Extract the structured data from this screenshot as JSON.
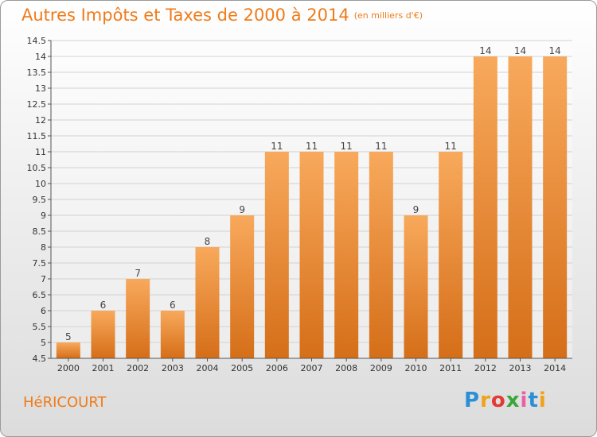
{
  "header": {
    "title": "Autres Impôts et Taxes de 2000 à 2014",
    "subtitle": "(en milliers d'€)"
  },
  "commune": "HéRICOURT",
  "logo": "Proxiti",
  "colors": {
    "accent": "#ef7b1a",
    "bar_top": "#f8a95c",
    "bar_bottom": "#d56e18"
  },
  "chart_data": {
    "type": "bar",
    "title": "Autres Impôts et Taxes de 2000 à 2014",
    "subtitle": "(en milliers d'€)",
    "categories": [
      "2000",
      "2001",
      "2002",
      "2003",
      "2004",
      "2005",
      "2006",
      "2007",
      "2008",
      "2009",
      "2010",
      "2011",
      "2012",
      "2013",
      "2014"
    ],
    "values": [
      5,
      6,
      7,
      6,
      8,
      9,
      11,
      11,
      11,
      11,
      9,
      11,
      14,
      14,
      14
    ],
    "data_labels": [
      "5",
      "6",
      "7",
      "6",
      "8",
      "9",
      "11",
      "11",
      "11",
      "11",
      "9",
      "11",
      "14",
      "14",
      "14"
    ],
    "ylim": [
      4.5,
      14.5
    ],
    "yticks": [
      "4.5",
      "5",
      "5.5",
      "6",
      "6.5",
      "7",
      "7.5",
      "8",
      "8.5",
      "9",
      "9.5",
      "10",
      "10.5",
      "11",
      "11.5",
      "12",
      "12.5",
      "13",
      "13.5",
      "14",
      "14.5"
    ],
    "grid": true
  }
}
